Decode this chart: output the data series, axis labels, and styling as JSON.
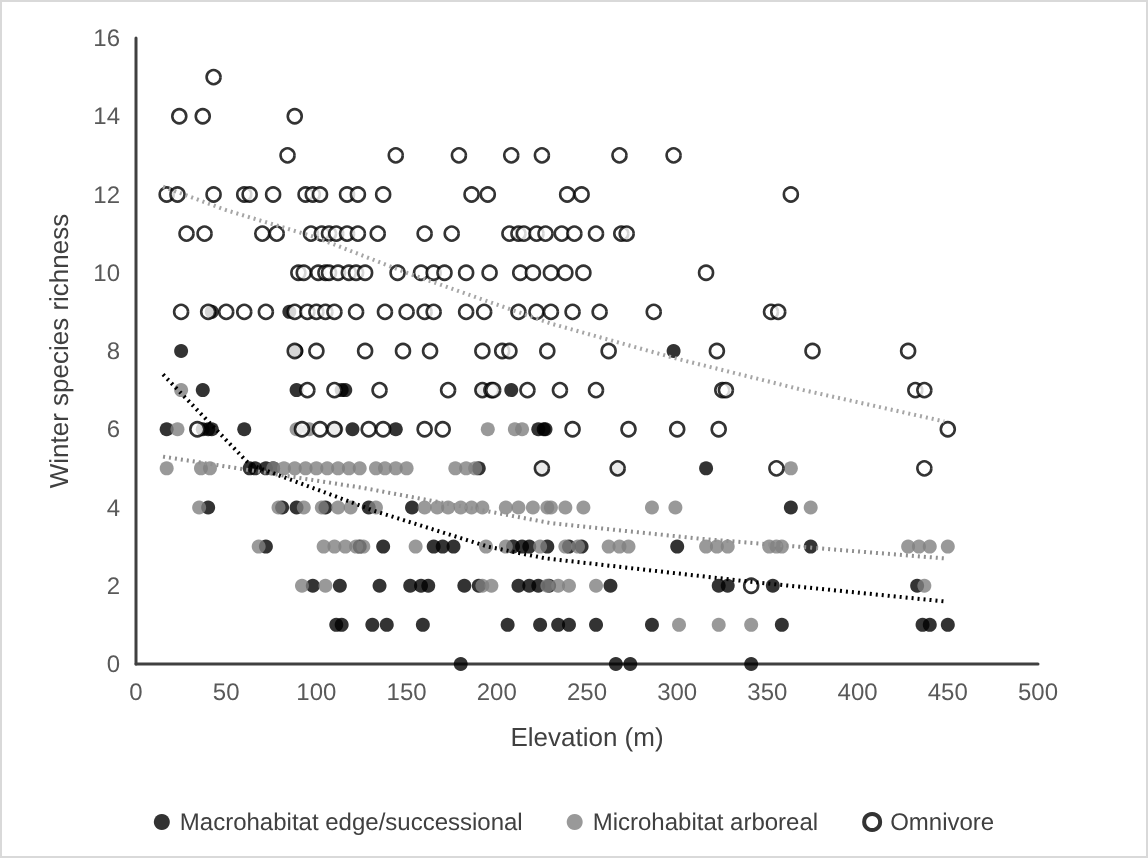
{
  "chart_data": {
    "type": "scatter",
    "xlabel": "Elevation (m)",
    "ylabel": "Winter species richness",
    "xlim": [
      0,
      500
    ],
    "xticks": [
      0,
      50,
      100,
      150,
      200,
      250,
      300,
      350,
      400,
      450,
      500
    ],
    "ylim": [
      0,
      16
    ],
    "yticks": [
      0,
      2,
      4,
      6,
      8,
      10,
      12,
      14,
      16
    ],
    "grid": false,
    "legend": "bottom",
    "marker": "circle",
    "series": [
      {
        "name": "Macrohabitat edge/successional",
        "color": "#000000",
        "x": [
          42,
          85,
          25,
          89,
          298,
          37,
          89,
          114,
          116,
          197,
          208,
          17,
          37,
          40,
          42,
          60,
          120,
          144,
          223,
          226,
          227,
          63,
          66,
          72,
          76,
          190,
          316,
          40,
          81,
          89,
          105,
          129,
          153,
          363,
          72,
          124,
          137,
          165,
          170,
          176,
          209,
          214,
          218,
          228,
          240,
          247,
          300,
          374,
          98,
          113,
          135,
          152,
          158,
          162,
          182,
          190,
          212,
          218,
          223,
          229,
          263,
          323,
          328,
          353,
          433,
          111,
          114,
          131,
          139,
          159,
          206,
          224,
          234,
          240,
          255,
          286,
          358,
          436,
          440,
          450,
          180,
          266,
          274,
          341
        ],
        "values": [
          9,
          9,
          8,
          8,
          8,
          7,
          7,
          7,
          7,
          7,
          7,
          6,
          6,
          6,
          6,
          6,
          6,
          6,
          6,
          6,
          6,
          5,
          5,
          5,
          5,
          5,
          5,
          4,
          4,
          4,
          4,
          4,
          4,
          4,
          3,
          3,
          3,
          3,
          3,
          3,
          3,
          3,
          3,
          3,
          3,
          3,
          3,
          3,
          2,
          2,
          2,
          2,
          2,
          2,
          2,
          2,
          2,
          2,
          2,
          2,
          2,
          2,
          2,
          2,
          2,
          1,
          1,
          1,
          1,
          1,
          1,
          1,
          1,
          1,
          1,
          1,
          1,
          1,
          1,
          1,
          0,
          0,
          0,
          0
        ]
      },
      {
        "name": "Microhabitat arboreal",
        "color": "#808080",
        "x": [
          25,
          192,
          23,
          89,
          96,
          111,
          195,
          210,
          214,
          17,
          36,
          41,
          76,
          82,
          88,
          94,
          100,
          106,
          112,
          118,
          124,
          133,
          138,
          144,
          150,
          177,
          183,
          188,
          225,
          267,
          363,
          35,
          79,
          93,
          103,
          112,
          119,
          133,
          160,
          167,
          173,
          180,
          186,
          192,
          205,
          212,
          220,
          228,
          230,
          238,
          248,
          286,
          299,
          374,
          68,
          104,
          110,
          116,
          122,
          126,
          155,
          194,
          205,
          224,
          238,
          245,
          262,
          268,
          273,
          316,
          322,
          328,
          351,
          355,
          358,
          428,
          434,
          440,
          450,
          92,
          105,
          192,
          197,
          228,
          234,
          240,
          255,
          437,
          301,
          323,
          341
        ],
        "values": [
          7,
          7,
          6,
          6,
          6,
          6,
          6,
          6,
          6,
          5,
          5,
          5,
          5,
          5,
          5,
          5,
          5,
          5,
          5,
          5,
          5,
          5,
          5,
          5,
          5,
          5,
          5,
          5,
          5,
          5,
          5,
          4,
          4,
          4,
          4,
          4,
          4,
          4,
          4,
          4,
          4,
          4,
          4,
          4,
          4,
          4,
          4,
          4,
          4,
          4,
          4,
          4,
          4,
          4,
          3,
          3,
          3,
          3,
          3,
          3,
          3,
          3,
          3,
          3,
          3,
          3,
          3,
          3,
          3,
          3,
          3,
          3,
          3,
          3,
          3,
          3,
          3,
          3,
          3,
          2,
          2,
          2,
          2,
          2,
          2,
          2,
          2,
          2,
          1,
          1,
          1
        ]
      },
      {
        "name": "Omnivore",
        "color": "#ffffff",
        "x": [
          43,
          24,
          37,
          88,
          84,
          144,
          179,
          208,
          225,
          268,
          298,
          17,
          23,
          43,
          60,
          63,
          76,
          94,
          98,
          102,
          117,
          123,
          137,
          186,
          195,
          239,
          247,
          363,
          28,
          38,
          70,
          78,
          97,
          103,
          107,
          111,
          117,
          123,
          134,
          160,
          175,
          207,
          212,
          215,
          222,
          227,
          236,
          243,
          255,
          269,
          272,
          90,
          93,
          101,
          105,
          107,
          112,
          118,
          122,
          127,
          145,
          158,
          165,
          171,
          183,
          196,
          213,
          220,
          230,
          238,
          248,
          316,
          25,
          40,
          50,
          60,
          72,
          88,
          95,
          100,
          105,
          110,
          122,
          138,
          150,
          160,
          165,
          183,
          193,
          212,
          222,
          230,
          242,
          257,
          287,
          352,
          356,
          88,
          100,
          127,
          148,
          163,
          192,
          203,
          207,
          228,
          262,
          322,
          375,
          428,
          95,
          110,
          135,
          173,
          192,
          197,
          198,
          217,
          235,
          255,
          325,
          327,
          432,
          437,
          34,
          92,
          102,
          110,
          129,
          137,
          160,
          170,
          242,
          273,
          300,
          323,
          450,
          225,
          267,
          355,
          437,
          341
        ],
        "values": [
          15,
          14,
          14,
          14,
          13,
          13,
          13,
          13,
          13,
          13,
          13,
          12,
          12,
          12,
          12,
          12,
          12,
          12,
          12,
          12,
          12,
          12,
          12,
          12,
          12,
          12,
          12,
          12,
          11,
          11,
          11,
          11,
          11,
          11,
          11,
          11,
          11,
          11,
          11,
          11,
          11,
          11,
          11,
          11,
          11,
          11,
          11,
          11,
          11,
          11,
          11,
          10,
          10,
          10,
          10,
          10,
          10,
          10,
          10,
          10,
          10,
          10,
          10,
          10,
          10,
          10,
          10,
          10,
          10,
          10,
          10,
          10,
          9,
          9,
          9,
          9,
          9,
          9,
          9,
          9,
          9,
          9,
          9,
          9,
          9,
          9,
          9,
          9,
          9,
          9,
          9,
          9,
          9,
          9,
          9,
          9,
          9,
          8,
          8,
          8,
          8,
          8,
          8,
          8,
          8,
          8,
          8,
          8,
          8,
          8,
          7,
          7,
          7,
          7,
          7,
          7,
          7,
          7,
          7,
          7,
          7,
          7,
          7,
          7,
          6,
          6,
          6,
          6,
          6,
          6,
          6,
          6,
          6,
          6,
          6,
          6,
          6,
          5,
          5,
          5,
          5,
          2
        ]
      },
      {
        "type": "line",
        "color": "#000000",
        "line_style": "dotted",
        "marker": "none",
        "x": [
          15,
          63,
          133,
          195,
          227,
          341,
          448
        ],
        "values": [
          7.4,
          5.1,
          3.9,
          3.0,
          2.7,
          2.1,
          1.6
        ]
      },
      {
        "type": "line",
        "color": "#909090",
        "line_style": "dotted",
        "marker": "none",
        "x": [
          15,
          126,
          230,
          313,
          448
        ],
        "values": [
          5.3,
          4.5,
          3.6,
          3.2,
          2.7
        ]
      },
      {
        "type": "line",
        "color": "#a6a6a6",
        "line_style": "dotted",
        "marker": "none",
        "x": [
          15,
          50,
          100,
          150,
          230,
          300,
          370,
          448
        ],
        "values": [
          12.2,
          11.6,
          10.9,
          10.0,
          8.7,
          7.8,
          7.0,
          6.2
        ]
      }
    ]
  }
}
